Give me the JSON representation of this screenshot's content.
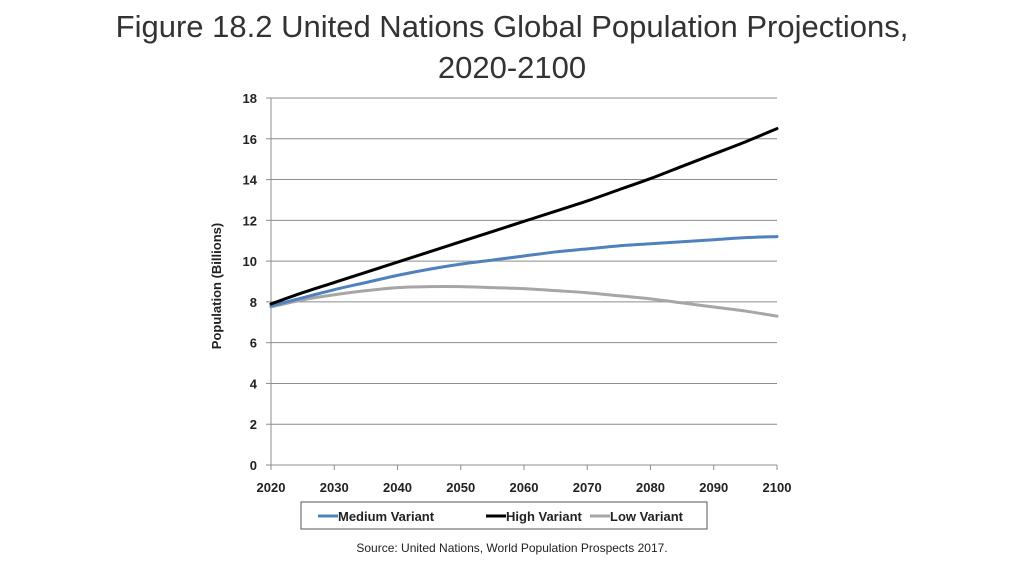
{
  "title_line1": "Figure 18.2 United Nations Global Population Projections,",
  "title_line2": "2020-2100",
  "source": "Source: United Nations, World Population Prospects 2017.",
  "colors": {
    "medium": "#4f81bd",
    "high": "#000000",
    "low": "#a6a6a6",
    "grid": "#8c8c8c"
  },
  "chart_data": {
    "type": "line",
    "title": "Figure 18.2 United Nations Global Population Projections, 2020-2100",
    "xlabel": "",
    "ylabel": "Population (Billions)",
    "x": [
      2020,
      2025,
      2030,
      2035,
      2040,
      2045,
      2050,
      2055,
      2060,
      2065,
      2070,
      2075,
      2080,
      2085,
      2090,
      2095,
      2100
    ],
    "xticks": [
      "2020",
      "2030",
      "2040",
      "2050",
      "2060",
      "2070",
      "2080",
      "2090",
      "2100"
    ],
    "yticks": [
      "0",
      "2",
      "4",
      "6",
      "8",
      "10",
      "12",
      "14",
      "16",
      "18"
    ],
    "xlim": [
      2020,
      2100
    ],
    "ylim": [
      0,
      18
    ],
    "grid": true,
    "legend": "bottom",
    "series": [
      {
        "name": "Medium Variant",
        "values": [
          7.8,
          8.2,
          8.6,
          8.95,
          9.3,
          9.6,
          9.85,
          10.05,
          10.25,
          10.45,
          10.6,
          10.75,
          10.85,
          10.95,
          11.05,
          11.15,
          11.2
        ]
      },
      {
        "name": "High Variant",
        "values": [
          7.9,
          8.45,
          8.95,
          9.45,
          9.95,
          10.45,
          10.95,
          11.45,
          11.95,
          12.45,
          12.95,
          13.5,
          14.05,
          14.65,
          15.25,
          15.85,
          16.5
        ]
      },
      {
        "name": "Low Variant",
        "values": [
          7.75,
          8.1,
          8.35,
          8.55,
          8.7,
          8.75,
          8.75,
          8.7,
          8.65,
          8.55,
          8.45,
          8.3,
          8.15,
          7.95,
          7.75,
          7.55,
          7.3
        ]
      }
    ]
  }
}
